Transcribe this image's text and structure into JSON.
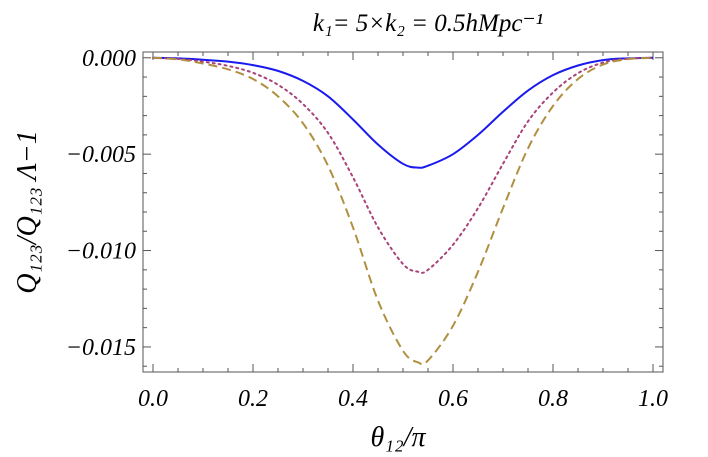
{
  "chart_data": {
    "type": "line",
    "title": "k₁= 5×k₂ = 0.5hMpc⁻¹",
    "xlabel": "θ₁₂/π",
    "ylabel": "Q₁₂₃/Q₁₂₃ Λ−1",
    "xlim": [
      -0.02,
      1.02
    ],
    "ylim": [
      -0.0163,
      0.0003
    ],
    "x_ticks": [
      0.0,
      0.2,
      0.4,
      0.6,
      0.8,
      1.0
    ],
    "x_tick_labels": [
      "0.0",
      "0.2",
      "0.4",
      "0.6",
      "0.8",
      "1.0"
    ],
    "y_ticks": [
      0.0,
      -0.005,
      -0.01,
      -0.015
    ],
    "y_tick_labels": [
      "0.000",
      "−0.005",
      "−0.010",
      "−0.015"
    ],
    "grid": false,
    "x": [
      0.0,
      0.05,
      0.1,
      0.15,
      0.2,
      0.25,
      0.3,
      0.35,
      0.4,
      0.45,
      0.5,
      0.53,
      0.55,
      0.6,
      0.65,
      0.7,
      0.75,
      0.8,
      0.85,
      0.9,
      0.95,
      1.0
    ],
    "series": [
      {
        "style": "solid",
        "color": "#1a1aee",
        "values": [
          0.0,
          -3e-05,
          -0.0001,
          -0.0002,
          -0.00038,
          -0.00068,
          -0.0012,
          -0.002,
          -0.0032,
          -0.0045,
          -0.0055,
          -0.0057,
          -0.0056,
          -0.005,
          -0.004,
          -0.0028,
          -0.0017,
          -0.0009,
          -0.0004,
          -0.00012,
          -3e-05,
          0.0
        ]
      },
      {
        "style": "dotted",
        "color": "#a8437a",
        "values": [
          0.0,
          -6e-05,
          -0.0002,
          -0.00042,
          -0.00078,
          -0.0014,
          -0.0024,
          -0.0039,
          -0.0062,
          -0.0088,
          -0.0107,
          -0.0111,
          -0.011,
          -0.0097,
          -0.0078,
          -0.0055,
          -0.0033,
          -0.0018,
          -0.0008,
          -0.00025,
          -5e-05,
          0.0
        ]
      },
      {
        "style": "dashed",
        "color": "#b09040",
        "values": [
          0.0,
          -8e-05,
          -0.0003,
          -0.0006,
          -0.0011,
          -0.002,
          -0.0034,
          -0.0056,
          -0.0088,
          -0.0126,
          -0.0152,
          -0.0158,
          -0.0157,
          -0.0139,
          -0.0111,
          -0.0078,
          -0.0047,
          -0.0025,
          -0.0011,
          -0.00035,
          -7e-05,
          0.0
        ]
      }
    ]
  }
}
